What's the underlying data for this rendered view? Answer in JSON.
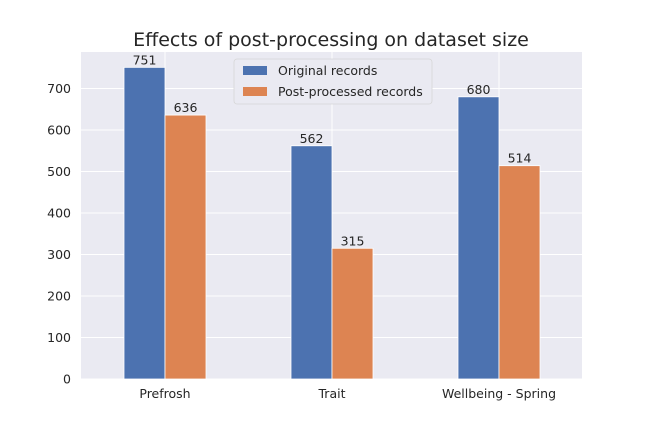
{
  "chart_data": {
    "type": "bar",
    "title": "Effects of post-processing on dataset size",
    "xlabel": "",
    "ylabel": "",
    "categories": [
      "Prefrosh",
      "Trait",
      "Wellbeing - Spring"
    ],
    "series": [
      {
        "name": "Original records",
        "values": [
          751,
          562,
          680
        ],
        "color": "#4c72b0"
      },
      {
        "name": "Post-processed records",
        "values": [
          636,
          315,
          514
        ],
        "color": "#dd8452"
      }
    ],
    "ylim": [
      0,
      788
    ],
    "yticks": [
      0,
      100,
      200,
      300,
      400,
      500,
      600,
      700
    ],
    "grid": true,
    "legend_position": "top-center",
    "background": "#eaeaf2",
    "grid_color": "#ffffff"
  }
}
